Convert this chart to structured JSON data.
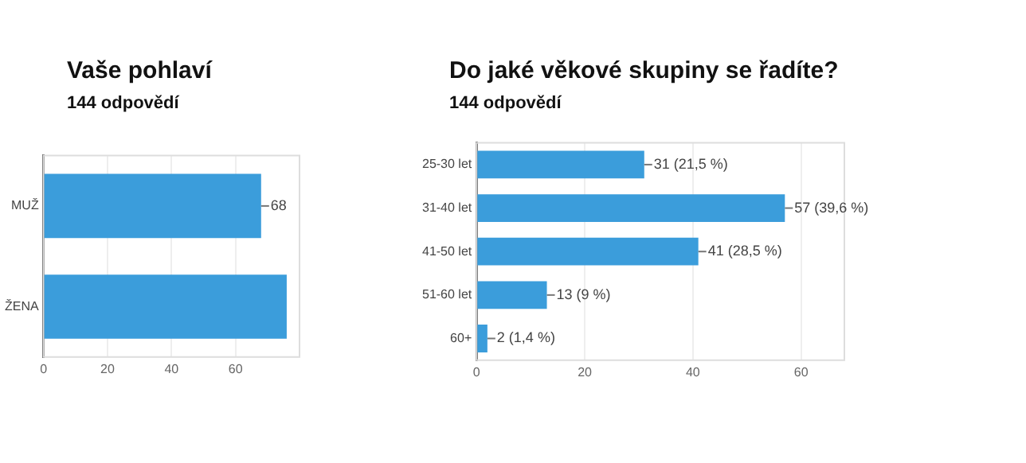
{
  "chart_data": [
    {
      "type": "bar",
      "orientation": "horizontal",
      "title": "Vaše pohlaví",
      "subtitle": "144 odpovědí",
      "categories": [
        "MUŽ",
        "ŽENA"
      ],
      "values": [
        68,
        76
      ],
      "value_labels": [
        "68",
        null
      ],
      "color": "#3b9ddb",
      "xlim": [
        0,
        80
      ],
      "xticks": [
        0,
        20,
        40,
        60
      ],
      "grid": "x"
    },
    {
      "type": "bar",
      "orientation": "horizontal",
      "title": "Do jaké věkové skupiny se řadíte?",
      "subtitle": "144 odpovědí",
      "categories": [
        "25-30 let",
        "31-40 let",
        "41-50 let",
        "51-60 let",
        "60+"
      ],
      "values": [
        31,
        57,
        41,
        13,
        2
      ],
      "value_labels": [
        "31 (21,5 %)",
        "57 (39,6 %)",
        "41 (28,5 %)",
        "13 (9 %)",
        "2 (1,4 %)"
      ],
      "color": "#3b9ddb",
      "xlim": [
        0,
        68
      ],
      "xticks": [
        0,
        20,
        40,
        60
      ],
      "grid": "x"
    }
  ]
}
